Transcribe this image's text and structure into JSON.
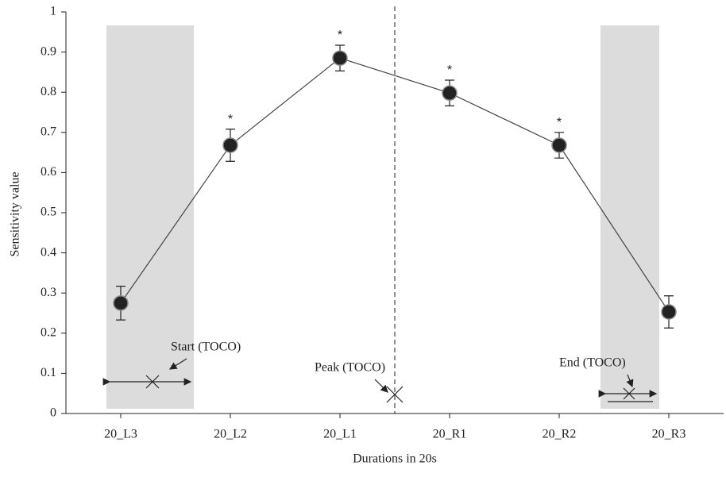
{
  "chart_data": {
    "type": "line",
    "x_label": "Durations in 20s",
    "y_label": "Sensitivity value",
    "categories": [
      "20_L3",
      "20_L2",
      "20_L1",
      "20_R1",
      "20_R2",
      "20_R3"
    ],
    "series": [
      {
        "color": "#222222",
        "values": [
          0.275,
          0.668,
          0.885,
          0.798,
          0.668,
          0.253
        ],
        "errors": [
          0.042,
          0.04,
          0.032,
          0.032,
          0.032,
          0.04
        ]
      }
    ],
    "significance": [
      null,
      "*",
      "*",
      "*",
      "*",
      null
    ],
    "annotations": [
      "Start (TOCO)",
      "Peak (TOCO)",
      "End (TOCO)"
    ],
    "ylim": [
      0,
      1
    ],
    "yticks": [
      0,
      0.1,
      0.2,
      0.3,
      0.4,
      0.5,
      0.6,
      0.7,
      0.8,
      0.9,
      1
    ]
  }
}
